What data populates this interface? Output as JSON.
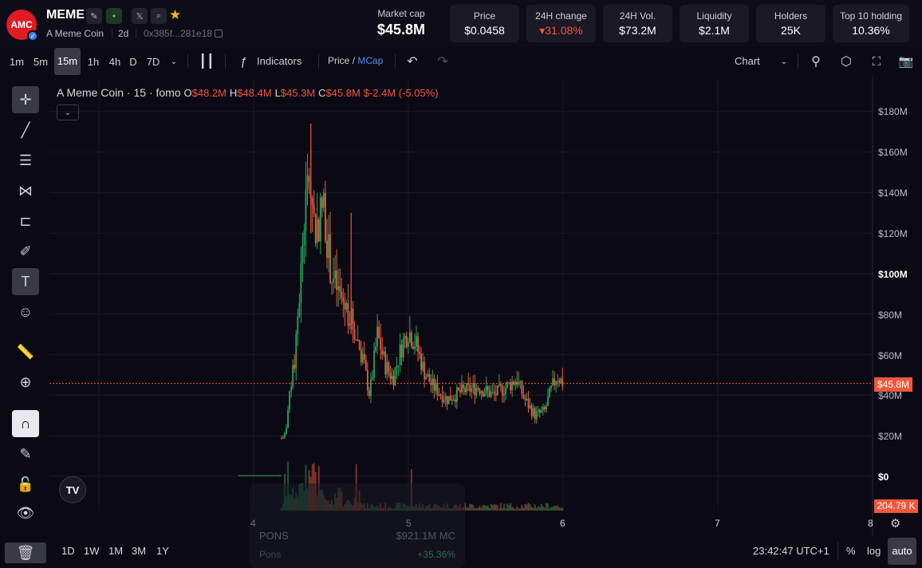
{
  "header": {
    "logo_text": "AMC",
    "ticker": "MEME",
    "coin_name": "A Meme Coin",
    "age": "2d",
    "address": "0x385f...281e18",
    "market_cap_label": "Market cap",
    "market_cap_value": "$45.8M",
    "stats": [
      {
        "label": "Price",
        "value": "$0.0458"
      },
      {
        "label": "24H change",
        "value": "▾31.08%"
      },
      {
        "label": "24H Vol.",
        "value": "$73.2M"
      },
      {
        "label": "Liquidity",
        "value": "$2.1M"
      },
      {
        "label": "Holders",
        "value": "25K"
      },
      {
        "label": "Top 10 holding",
        "value": "10.36%"
      }
    ]
  },
  "toolbar": {
    "timeframes": [
      "1m",
      "5m",
      "15m",
      "1h",
      "4h",
      "D",
      "7D"
    ],
    "active_timeframe": "15m",
    "indicators_label": "Indicators",
    "price_label": "Price",
    "slash": "/",
    "mcap_label": "MCap",
    "chart_type_label": "Chart"
  },
  "legend": {
    "title": "A Meme Coin · 15 · fomo",
    "o_key": "O",
    "o": "$48.2M",
    "h_key": "H",
    "h": "$48.4M",
    "l_key": "L",
    "l": "$45.3M",
    "c_key": "C",
    "c": "$45.8M",
    "change": "$-2.4M (-5.05%)"
  },
  "axis": {
    "y_labels": [
      "$180M",
      "$160M",
      "$140M",
      "$120M",
      "$100M",
      "$80M",
      "$60M",
      "$40M",
      "$20M",
      "$0"
    ],
    "x_labels": [
      "4",
      "5",
      "6",
      "7",
      "8"
    ],
    "current_price_tag": "$45.8M",
    "volume_tag": "204.79 K"
  },
  "chart_data": {
    "type": "candlestick",
    "series_name": "MCap",
    "x_ticks": [
      "4",
      "5",
      "6",
      "7",
      "8"
    ],
    "ylim": [
      0,
      190
    ],
    "y_unit": "$M",
    "current_value": 45.8,
    "volume_last": "204.79 K",
    "approx_close_path": [
      {
        "x": 3.9,
        "y": 0
      },
      {
        "x": 4.2,
        "y": 20
      },
      {
        "x": 4.27,
        "y": 60
      },
      {
        "x": 4.33,
        "y": 130
      },
      {
        "x": 4.36,
        "y": 150
      },
      {
        "x": 4.4,
        "y": 120
      },
      {
        "x": 4.45,
        "y": 135
      },
      {
        "x": 4.5,
        "y": 100
      },
      {
        "x": 4.55,
        "y": 90
      },
      {
        "x": 4.62,
        "y": 80
      },
      {
        "x": 4.7,
        "y": 60
      },
      {
        "x": 4.75,
        "y": 40
      },
      {
        "x": 4.8,
        "y": 70
      },
      {
        "x": 4.85,
        "y": 55
      },
      {
        "x": 4.9,
        "y": 48
      },
      {
        "x": 4.96,
        "y": 65
      },
      {
        "x": 5.0,
        "y": 72
      },
      {
        "x": 5.05,
        "y": 65
      },
      {
        "x": 5.1,
        "y": 52
      },
      {
        "x": 5.15,
        "y": 45
      },
      {
        "x": 5.25,
        "y": 38
      },
      {
        "x": 5.35,
        "y": 42
      },
      {
        "x": 5.45,
        "y": 44
      },
      {
        "x": 5.55,
        "y": 40
      },
      {
        "x": 5.65,
        "y": 45
      },
      {
        "x": 5.7,
        "y": 48
      },
      {
        "x": 5.75,
        "y": 38
      },
      {
        "x": 5.82,
        "y": 30
      },
      {
        "x": 5.88,
        "y": 32
      },
      {
        "x": 5.92,
        "y": 42
      },
      {
        "x": 5.96,
        "y": 50
      },
      {
        "x": 6.0,
        "y": 45.8
      }
    ]
  },
  "ghost_card": {
    "name": "PONS",
    "mc": "$921.1M MC",
    "sub": "Pons",
    "change": "+35.36%"
  },
  "bottom": {
    "ranges": [
      "1D",
      "1W",
      "1M",
      "3M",
      "1Y"
    ],
    "time": "23:42:47 UTC+1",
    "percent": "%",
    "log": "log",
    "auto": "auto"
  },
  "colors": {
    "up": "#26a65b",
    "down": "#f0573a",
    "background": "#0b0a14",
    "accent": "#f0573a"
  }
}
